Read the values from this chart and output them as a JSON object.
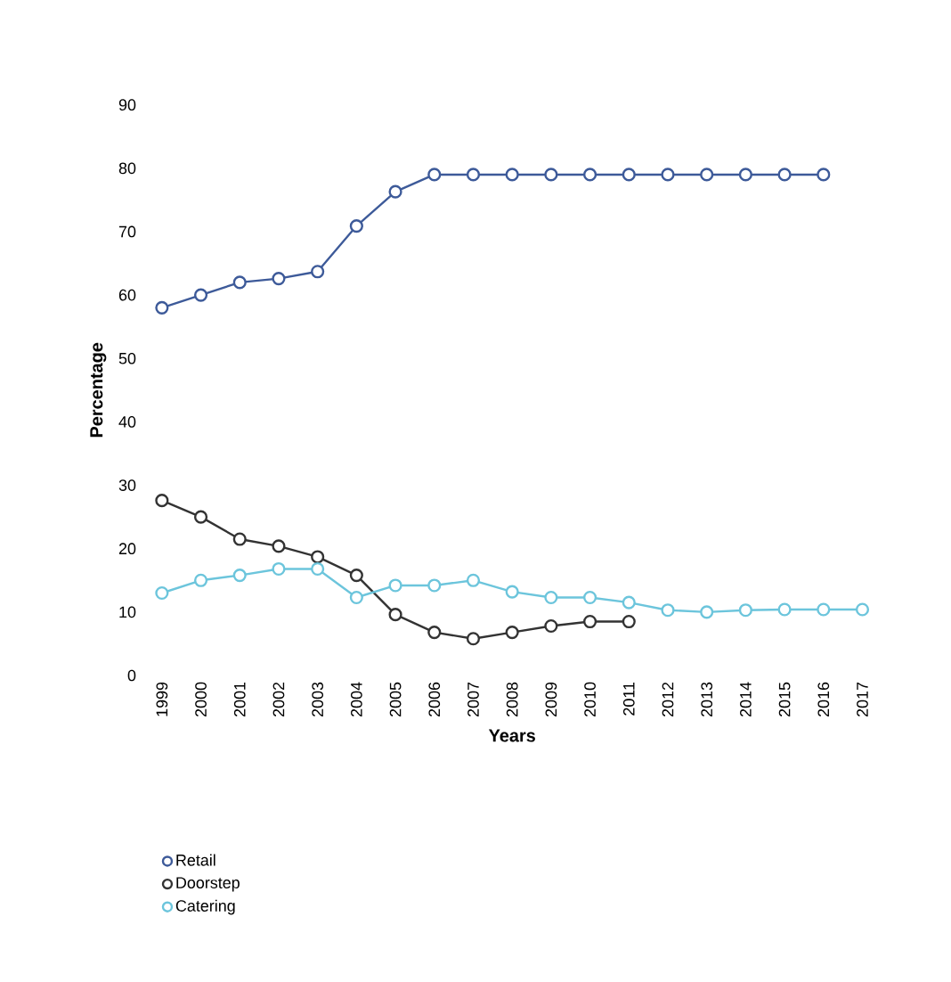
{
  "chart_data": {
    "type": "line",
    "xlabel": "Years",
    "ylabel": "Percentage",
    "categories": [
      "1999",
      "2000",
      "2001",
      "2002",
      "2003",
      "2004",
      "2005",
      "2006",
      "2007",
      "2008",
      "2009",
      "2010",
      "2011",
      "2012",
      "2013",
      "2014",
      "2015",
      "2016",
      "2017"
    ],
    "series": [
      {
        "name": "Retail",
        "color": "#3d5a99",
        "values": [
          58,
          60,
          62,
          62.6,
          63.7,
          70.9,
          76.3,
          79,
          79,
          79,
          79,
          79,
          79,
          79,
          79,
          79,
          79,
          79,
          null
        ]
      },
      {
        "name": "Doorstep",
        "color": "#333333",
        "values": [
          27.6,
          25,
          21.5,
          20.4,
          18.7,
          15.8,
          9.6,
          6.8,
          5.8,
          6.8,
          7.8,
          8.5,
          8.5,
          null,
          null,
          null,
          null,
          null,
          null
        ]
      },
      {
        "name": "Catering",
        "color": "#6cc5dc",
        "values": [
          13,
          15,
          15.8,
          16.8,
          16.8,
          12.3,
          14.2,
          14.2,
          15,
          13.2,
          12.3,
          12.3,
          11.5,
          10.3,
          10,
          10.3,
          10.4,
          10.4,
          10.4
        ]
      }
    ],
    "ylim": [
      0,
      90
    ],
    "yticks": [
      0,
      10,
      20,
      30,
      40,
      50,
      60,
      70,
      80,
      90
    ],
    "marker": "circle",
    "legend": "bottom left",
    "grid": false
  }
}
